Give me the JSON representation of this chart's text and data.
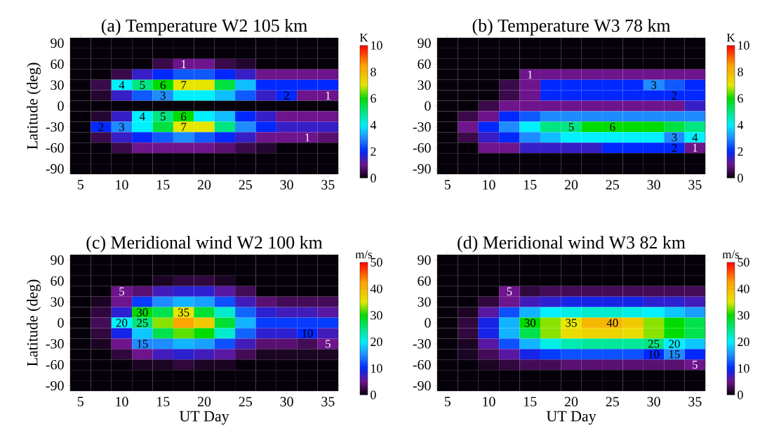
{
  "chart_data": [
    {
      "type": "heatmap",
      "title": "(a) Temperature W2 105 km",
      "ylabel": "Latitude (deg)",
      "clabel": "K",
      "categories": [
        "5",
        null,
        "10",
        null,
        "15",
        null,
        "20",
        null,
        "25",
        null,
        "30",
        null,
        "35"
      ],
      "y_categories": [
        "90",
        null,
        "60",
        null,
        "30",
        null,
        "0",
        null,
        "-30",
        null,
        "-60",
        null,
        "-90"
      ],
      "clim": [
        0,
        10
      ],
      "cticks": [
        0,
        2,
        4,
        6,
        8,
        10
      ],
      "cells": [
        [
          0,
          0,
          0,
          0,
          0,
          0,
          0,
          0,
          0,
          0,
          0,
          0,
          0
        ],
        [
          0,
          0,
          0,
          0,
          0,
          0,
          0,
          0,
          0,
          0,
          0,
          0,
          0
        ],
        [
          0,
          0,
          0,
          0,
          0.5,
          1,
          1,
          0.5,
          0.3,
          0,
          0,
          0,
          0
        ],
        [
          0,
          0,
          0.5,
          1.5,
          2,
          2.5,
          2.5,
          2,
          1.5,
          1,
          1,
          1,
          1
        ],
        [
          0,
          0.5,
          4,
          5,
          6,
          7,
          7,
          5.5,
          3.5,
          2,
          2,
          2,
          2
        ],
        [
          0,
          0.3,
          1.5,
          2.5,
          3,
          4,
          4,
          3.5,
          2.5,
          1.5,
          2,
          1,
          1
        ],
        [
          0,
          0,
          0,
          0,
          0,
          0,
          0,
          0,
          0,
          0,
          0,
          0,
          0
        ],
        [
          0,
          0.3,
          1.5,
          4,
          5,
          6,
          4,
          3.5,
          2,
          1.5,
          1,
          1,
          1
        ],
        [
          0,
          2,
          3,
          4,
          5.5,
          7,
          7,
          5,
          3,
          2,
          1.5,
          1.5,
          1.5
        ],
        [
          0,
          0.5,
          1.5,
          2,
          2.5,
          3,
          2.5,
          2,
          1.5,
          1,
          1,
          1,
          0.8
        ],
        [
          0,
          0,
          0.5,
          1,
          1,
          1,
          1,
          0.8,
          0.5,
          0.3,
          0,
          0,
          0
        ],
        [
          0,
          0,
          0,
          0,
          0,
          0,
          0,
          0,
          0,
          0,
          0,
          0,
          0
        ],
        [
          0,
          0,
          0,
          0,
          0,
          0,
          0,
          0,
          0,
          0,
          0,
          0,
          0
        ]
      ],
      "cell_labels": [
        [
          null,
          null,
          null,
          null,
          null,
          null,
          null,
          null,
          null,
          null,
          null,
          null,
          null
        ],
        [
          null,
          null,
          null,
          null,
          null,
          null,
          null,
          null,
          null,
          null,
          null,
          null,
          null
        ],
        [
          null,
          null,
          null,
          null,
          null,
          "1",
          null,
          null,
          null,
          null,
          null,
          null,
          null
        ],
        [
          null,
          null,
          null,
          null,
          null,
          null,
          null,
          null,
          null,
          null,
          null,
          null,
          null
        ],
        [
          null,
          null,
          "4",
          "5",
          "6",
          "7",
          null,
          null,
          null,
          null,
          null,
          null,
          null
        ],
        [
          null,
          null,
          null,
          null,
          "3",
          null,
          null,
          null,
          null,
          null,
          "2",
          null,
          "1"
        ],
        [
          null,
          null,
          null,
          null,
          null,
          null,
          null,
          null,
          null,
          null,
          null,
          null,
          null
        ],
        [
          null,
          null,
          null,
          "4",
          "5",
          "6",
          null,
          null,
          null,
          null,
          null,
          null,
          null
        ],
        [
          null,
          "2",
          "3",
          null,
          null,
          "7",
          null,
          null,
          null,
          null,
          null,
          null,
          null
        ],
        [
          null,
          null,
          null,
          null,
          null,
          null,
          null,
          null,
          null,
          null,
          null,
          "1",
          null
        ],
        [
          null,
          null,
          null,
          null,
          null,
          null,
          null,
          null,
          null,
          null,
          null,
          null,
          null
        ],
        [
          null,
          null,
          null,
          null,
          null,
          null,
          null,
          null,
          null,
          null,
          null,
          null,
          null
        ],
        [
          null,
          null,
          null,
          null,
          null,
          null,
          null,
          null,
          null,
          null,
          null,
          null,
          null
        ]
      ]
    },
    {
      "type": "heatmap",
      "title": "(b) Temperature W3 78 km",
      "clabel": "K",
      "categories": [
        "5",
        null,
        "10",
        null,
        "15",
        null,
        "20",
        null,
        "25",
        null,
        "30",
        null,
        "35"
      ],
      "y_categories": [
        "90",
        null,
        "60",
        null,
        "30",
        null,
        "0",
        null,
        "-30",
        null,
        "-60",
        null,
        "-90"
      ],
      "clim": [
        0,
        10
      ],
      "cticks": [
        0,
        2,
        4,
        6,
        8,
        10
      ],
      "cells": [
        [
          0,
          0,
          0,
          0,
          0,
          0,
          0,
          0,
          0,
          0,
          0,
          0,
          0
        ],
        [
          0,
          0,
          0,
          0,
          0,
          0,
          0,
          0,
          0,
          0,
          0,
          0,
          0
        ],
        [
          0,
          0,
          0,
          0,
          0,
          0,
          0,
          0,
          0,
          0,
          0,
          0,
          0
        ],
        [
          0,
          0,
          0,
          0,
          1,
          1,
          1,
          1,
          1,
          1,
          1,
          1,
          1
        ],
        [
          0,
          0,
          0,
          0.5,
          1,
          2,
          2,
          2,
          2,
          2,
          3,
          2.5,
          2
        ],
        [
          0,
          0,
          0,
          0.5,
          1,
          2,
          2,
          2,
          2,
          2,
          2,
          2,
          2
        ],
        [
          0,
          0,
          0.5,
          1,
          1,
          1,
          1,
          1,
          1,
          1,
          1,
          1,
          1.5
        ],
        [
          0,
          0.5,
          1,
          2,
          2.5,
          3,
          3,
          3,
          3,
          3,
          3,
          3,
          3
        ],
        [
          0,
          1,
          2,
          3,
          4,
          5,
          5,
          6,
          6,
          6,
          6,
          5.5,
          5
        ],
        [
          0,
          0.5,
          1.5,
          2,
          3,
          3.5,
          4,
          4,
          4,
          4,
          4,
          3,
          4
        ],
        [
          0,
          0,
          1,
          1,
          1.5,
          1.5,
          1.5,
          1.5,
          2,
          2,
          2,
          2,
          1
        ],
        [
          0,
          0,
          0,
          0,
          0,
          0,
          0,
          0,
          0,
          0,
          0,
          0,
          0
        ],
        [
          0,
          0,
          0,
          0,
          0,
          0,
          0,
          0,
          0,
          0,
          0,
          0,
          0
        ]
      ],
      "cell_labels": [
        [
          null,
          null,
          null,
          null,
          null,
          null,
          null,
          null,
          null,
          null,
          null,
          null,
          null
        ],
        [
          null,
          null,
          null,
          null,
          null,
          null,
          null,
          null,
          null,
          null,
          null,
          null,
          null
        ],
        [
          null,
          null,
          null,
          null,
          null,
          null,
          null,
          null,
          null,
          null,
          null,
          null,
          null
        ],
        [
          null,
          null,
          null,
          null,
          "1",
          null,
          null,
          null,
          null,
          null,
          null,
          null,
          null
        ],
        [
          null,
          null,
          null,
          null,
          null,
          null,
          null,
          null,
          null,
          null,
          "3",
          null,
          null
        ],
        [
          null,
          null,
          null,
          null,
          null,
          null,
          null,
          null,
          null,
          null,
          null,
          "2",
          null
        ],
        [
          null,
          null,
          null,
          null,
          null,
          null,
          null,
          null,
          null,
          null,
          null,
          null,
          null
        ],
        [
          null,
          null,
          null,
          null,
          null,
          null,
          null,
          null,
          null,
          null,
          null,
          null,
          null
        ],
        [
          null,
          null,
          null,
          null,
          null,
          null,
          "5",
          null,
          "6",
          null,
          null,
          null,
          null
        ],
        [
          null,
          null,
          null,
          null,
          null,
          null,
          null,
          null,
          null,
          null,
          null,
          "3",
          "4"
        ],
        [
          null,
          null,
          null,
          null,
          null,
          null,
          null,
          null,
          null,
          null,
          null,
          "2",
          "1"
        ],
        [
          null,
          null,
          null,
          null,
          null,
          null,
          null,
          null,
          null,
          null,
          null,
          null,
          null
        ],
        [
          null,
          null,
          null,
          null,
          null,
          null,
          null,
          null,
          null,
          null,
          null,
          null,
          null
        ]
      ]
    },
    {
      "type": "heatmap",
      "title": "(c) Meridional wind W2 100 km",
      "xlabel": "UT Day",
      "ylabel": "Latitude (deg)",
      "clabel": "m/s",
      "categories": [
        "5",
        null,
        "10",
        null,
        "15",
        null,
        "20",
        null,
        "25",
        null,
        "30",
        null,
        "35"
      ],
      "y_categories": [
        "90",
        null,
        "60",
        null,
        "30",
        null,
        "0",
        null,
        "-30",
        null,
        "-60",
        null,
        "-90"
      ],
      "clim": [
        0,
        50
      ],
      "cticks": [
        0,
        10,
        20,
        30,
        40,
        50
      ],
      "cells": [
        [
          0,
          0,
          0,
          0,
          0,
          0,
          0,
          0,
          0,
          0,
          0,
          0,
          0
        ],
        [
          0,
          0,
          0,
          0,
          0,
          0,
          0,
          0,
          0,
          0,
          0,
          0,
          0
        ],
        [
          0,
          0,
          0,
          0,
          1,
          2,
          2,
          1,
          0,
          0,
          0,
          0,
          0
        ],
        [
          0,
          0,
          5,
          4,
          7,
          8,
          8,
          6,
          3,
          0,
          0,
          0,
          0
        ],
        [
          0,
          1,
          5,
          11,
          15,
          17,
          16,
          12,
          7,
          4,
          3,
          3,
          3
        ],
        [
          0,
          2,
          8,
          30,
          27,
          35,
          28,
          22,
          13,
          8,
          7,
          7,
          6
        ],
        [
          0,
          3,
          20,
          25,
          33,
          42,
          38,
          28,
          17,
          11,
          11,
          11,
          11
        ],
        [
          0,
          2,
          9,
          18,
          27,
          32,
          30,
          22,
          13,
          8,
          8,
          10,
          7
        ],
        [
          0,
          1,
          5,
          15,
          15,
          17,
          16,
          12,
          7,
          4,
          4,
          3,
          5
        ],
        [
          0,
          0,
          2,
          5,
          7,
          8,
          7,
          6,
          3,
          1,
          1,
          1,
          1
        ],
        [
          0,
          0,
          0,
          1,
          1,
          2,
          1,
          1,
          0,
          0,
          0,
          0,
          0
        ],
        [
          0,
          0,
          0,
          0,
          0,
          0,
          0,
          0,
          0,
          0,
          0,
          0,
          0
        ],
        [
          0,
          0,
          0,
          0,
          0,
          0,
          0,
          0,
          0,
          0,
          0,
          0,
          0
        ]
      ],
      "cell_labels": [
        [
          null,
          null,
          null,
          null,
          null,
          null,
          null,
          null,
          null,
          null,
          null,
          null,
          null
        ],
        [
          null,
          null,
          null,
          null,
          null,
          null,
          null,
          null,
          null,
          null,
          null,
          null,
          null
        ],
        [
          null,
          null,
          null,
          null,
          null,
          null,
          null,
          null,
          null,
          null,
          null,
          null,
          null
        ],
        [
          null,
          null,
          "5",
          null,
          null,
          null,
          null,
          null,
          null,
          null,
          null,
          null,
          null
        ],
        [
          null,
          null,
          null,
          null,
          null,
          null,
          null,
          null,
          null,
          null,
          null,
          null,
          null
        ],
        [
          null,
          null,
          null,
          "30",
          null,
          "35",
          null,
          null,
          null,
          null,
          null,
          null,
          null
        ],
        [
          null,
          null,
          "20",
          "25",
          null,
          null,
          null,
          null,
          null,
          null,
          null,
          null,
          null
        ],
        [
          null,
          null,
          null,
          null,
          null,
          null,
          null,
          null,
          null,
          null,
          null,
          "10",
          null
        ],
        [
          null,
          null,
          null,
          "15",
          null,
          null,
          null,
          null,
          null,
          null,
          null,
          null,
          "5"
        ],
        [
          null,
          null,
          null,
          null,
          null,
          null,
          null,
          null,
          null,
          null,
          null,
          null,
          null
        ],
        [
          null,
          null,
          null,
          null,
          null,
          null,
          null,
          null,
          null,
          null,
          null,
          null,
          null
        ],
        [
          null,
          null,
          null,
          null,
          null,
          null,
          null,
          null,
          null,
          null,
          null,
          null,
          null
        ],
        [
          null,
          null,
          null,
          null,
          null,
          null,
          null,
          null,
          null,
          null,
          null,
          null,
          null
        ]
      ]
    },
    {
      "type": "heatmap",
      "title": "(d) Meridional wind W3 82 km",
      "xlabel": "UT Day",
      "clabel": "m/s",
      "categories": [
        "5",
        null,
        "10",
        null,
        "15",
        null,
        "20",
        null,
        "25",
        null,
        "30",
        null,
        "35"
      ],
      "y_categories": [
        "90",
        null,
        "60",
        null,
        "30",
        null,
        "0",
        null,
        "-30",
        null,
        "-60",
        null,
        "-90"
      ],
      "clim": [
        0,
        50
      ],
      "cticks": [
        0,
        10,
        20,
        30,
        40,
        50
      ],
      "cells": [
        [
          0,
          0,
          0,
          0,
          0,
          0,
          0,
          0,
          0,
          0,
          0,
          0,
          0
        ],
        [
          0,
          0,
          0,
          0,
          0,
          0,
          0,
          0,
          0,
          0,
          0,
          0,
          0
        ],
        [
          0,
          0,
          0,
          0,
          0,
          0,
          0,
          0,
          0,
          0,
          0,
          0,
          0
        ],
        [
          0,
          0,
          0,
          5,
          2,
          3,
          3,
          3,
          3,
          3,
          3,
          3,
          3
        ],
        [
          0,
          0,
          2,
          5,
          7,
          8,
          9,
          9,
          9,
          9,
          8,
          8,
          7
        ],
        [
          0,
          1,
          6,
          12,
          17,
          20,
          21,
          22,
          22,
          21,
          20,
          18,
          16
        ],
        [
          0,
          2,
          9,
          17,
          30,
          33,
          35,
          40,
          40,
          38,
          33,
          30,
          27
        ],
        [
          0,
          2,
          9,
          17,
          27,
          33,
          36,
          37,
          37,
          36,
          33,
          30,
          27
        ],
        [
          0,
          1,
          6,
          12,
          17,
          21,
          23,
          24,
          24,
          24,
          25,
          20,
          18
        ],
        [
          0,
          1,
          3,
          6,
          9,
          11,
          12,
          12,
          12,
          12,
          10,
          15,
          10
        ],
        [
          0,
          0,
          1,
          2,
          3,
          3,
          4,
          4,
          4,
          4,
          4,
          4,
          5
        ],
        [
          0,
          0,
          0,
          0,
          0,
          0,
          0,
          0,
          0,
          0,
          0,
          0,
          0
        ],
        [
          0,
          0,
          0,
          0,
          0,
          0,
          0,
          0,
          0,
          0,
          0,
          0,
          0
        ]
      ],
      "cell_labels": [
        [
          null,
          null,
          null,
          null,
          null,
          null,
          null,
          null,
          null,
          null,
          null,
          null,
          null
        ],
        [
          null,
          null,
          null,
          null,
          null,
          null,
          null,
          null,
          null,
          null,
          null,
          null,
          null
        ],
        [
          null,
          null,
          null,
          null,
          null,
          null,
          null,
          null,
          null,
          null,
          null,
          null,
          null
        ],
        [
          null,
          null,
          null,
          "5",
          null,
          null,
          null,
          null,
          null,
          null,
          null,
          null,
          null
        ],
        [
          null,
          null,
          null,
          null,
          null,
          null,
          null,
          null,
          null,
          null,
          null,
          null,
          null
        ],
        [
          null,
          null,
          null,
          null,
          null,
          null,
          null,
          null,
          null,
          null,
          null,
          null,
          null
        ],
        [
          null,
          null,
          null,
          null,
          "30",
          null,
          "35",
          null,
          "40",
          null,
          null,
          null,
          null
        ],
        [
          null,
          null,
          null,
          null,
          null,
          null,
          null,
          null,
          null,
          null,
          null,
          null,
          null
        ],
        [
          null,
          null,
          null,
          null,
          null,
          null,
          null,
          null,
          null,
          null,
          "25",
          "20",
          null
        ],
        [
          null,
          null,
          null,
          null,
          null,
          null,
          null,
          null,
          null,
          null,
          "10",
          "15",
          null
        ],
        [
          null,
          null,
          null,
          null,
          null,
          null,
          null,
          null,
          null,
          null,
          null,
          null,
          "5"
        ],
        [
          null,
          null,
          null,
          null,
          null,
          null,
          null,
          null,
          null,
          null,
          null,
          null,
          null
        ],
        [
          null,
          null,
          null,
          null,
          null,
          null,
          null,
          null,
          null,
          null,
          null,
          null,
          null
        ]
      ]
    }
  ]
}
